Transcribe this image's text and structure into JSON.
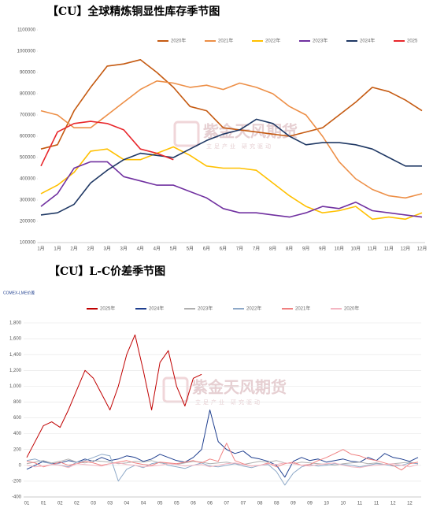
{
  "watermark": "紫金天风期货",
  "watermark_sub": "立足产业 研究驱动",
  "chart_data": [
    {
      "type": "line",
      "title": "【CU】全球精炼铜显性库存季节图",
      "categories": [
        "1月",
        "1月",
        "2月",
        "2月",
        "3月",
        "3月",
        "4月",
        "4月",
        "5月",
        "5月",
        "6月",
        "6月",
        "7月",
        "7月",
        "8月",
        "8月",
        "9月",
        "9月",
        "10月",
        "10月",
        "11月",
        "11月",
        "12月",
        "12月"
      ],
      "series": [
        {
          "name": "2020年",
          "color": "#c55a11",
          "values": [
            540000,
            560000,
            720000,
            830000,
            930000,
            940000,
            960000,
            900000,
            830000,
            740000,
            720000,
            640000,
            630000,
            620000,
            610000,
            600000,
            620000,
            640000,
            700000,
            760000,
            830000,
            810000,
            770000,
            720000
          ]
        },
        {
          "name": "2021年",
          "color": "#ed8f47",
          "values": [
            720000,
            700000,
            640000,
            640000,
            700000,
            760000,
            820000,
            860000,
            850000,
            830000,
            840000,
            820000,
            850000,
            830000,
            800000,
            740000,
            700000,
            600000,
            480000,
            400000,
            350000,
            320000,
            310000,
            330000
          ]
        },
        {
          "name": "2022年",
          "color": "#ffc000",
          "values": [
            330000,
            370000,
            430000,
            530000,
            540000,
            490000,
            490000,
            520000,
            550000,
            510000,
            460000,
            450000,
            450000,
            440000,
            380000,
            320000,
            270000,
            240000,
            250000,
            270000,
            210000,
            220000,
            210000,
            240000
          ]
        },
        {
          "name": "2023年",
          "color": "#7030a0",
          "values": [
            270000,
            330000,
            450000,
            480000,
            480000,
            410000,
            390000,
            370000,
            370000,
            340000,
            310000,
            260000,
            240000,
            240000,
            230000,
            220000,
            240000,
            270000,
            260000,
            290000,
            250000,
            240000,
            230000,
            220000
          ]
        },
        {
          "name": "2024年",
          "color": "#1f3864",
          "values": [
            230000,
            240000,
            280000,
            380000,
            440000,
            490000,
            520000,
            510000,
            500000,
            540000,
            580000,
            610000,
            630000,
            680000,
            660000,
            600000,
            560000,
            570000,
            570000,
            560000,
            540000,
            500000,
            460000,
            460000
          ]
        },
        {
          "name": "2025",
          "color": "#e8262b",
          "values": [
            460000,
            620000,
            660000,
            670000,
            660000,
            630000,
            540000,
            520000,
            490000,
            null,
            null,
            null,
            null,
            null,
            null,
            null,
            null,
            null,
            null,
            null,
            null,
            null,
            null,
            null
          ]
        }
      ],
      "ylim": [
        100000,
        1100000
      ],
      "yticks": [
        100000,
        200000,
        300000,
        400000,
        500000,
        600000,
        700000,
        800000,
        900000,
        1000000,
        1100000
      ],
      "grid": false,
      "legend": "top"
    },
    {
      "type": "line",
      "title": "【CU】L-C价差季节图",
      "subtitle": "COMEX-LME价差",
      "categories": [
        "01",
        null,
        "01",
        null,
        "02",
        null,
        "02",
        null,
        "03",
        null,
        "03",
        null,
        "04",
        null,
        "04",
        null,
        "05",
        null,
        "05",
        null,
        "06",
        null,
        "06",
        null,
        "07",
        null,
        "07",
        null,
        "08",
        null,
        "08",
        null,
        "09",
        null,
        "09",
        null,
        "10",
        null,
        "10",
        null,
        "11",
        null,
        "11",
        null,
        "12",
        null,
        "12",
        null
      ],
      "series": [
        {
          "name": "2025年",
          "color": "#c00000",
          "values": [
            100,
            300,
            500,
            550,
            480,
            700,
            950,
            1200,
            1100,
            900,
            700,
            1000,
            1400,
            1650,
            1200,
            700,
            1300,
            1450,
            1000,
            750,
            1100,
            1150,
            null,
            null,
            null,
            null,
            null,
            null,
            null,
            null,
            null,
            null,
            null,
            null,
            null,
            null,
            null,
            null,
            null,
            null,
            null,
            null,
            null,
            null,
            null,
            null,
            null,
            null
          ]
        },
        {
          "name": "2024年",
          "color": "#1f3f8f",
          "values": [
            -50,
            0,
            50,
            20,
            30,
            60,
            40,
            80,
            50,
            100,
            60,
            80,
            120,
            100,
            50,
            80,
            140,
            100,
            60,
            40,
            100,
            200,
            700,
            300,
            200,
            150,
            180,
            100,
            80,
            50,
            0,
            -150,
            50,
            100,
            60,
            80,
            40,
            60,
            80,
            50,
            40,
            100,
            60,
            150,
            100,
            80,
            50,
            100
          ]
        },
        {
          "name": "2023年",
          "color": "#b0b0b0",
          "values": [
            20,
            40,
            60,
            30,
            50,
            80,
            40,
            30,
            60,
            50,
            40,
            20,
            30,
            50,
            40,
            60,
            30,
            20,
            10,
            30,
            50,
            40,
            20,
            30,
            40,
            20,
            10,
            30,
            50,
            40,
            60,
            30,
            20,
            40,
            30,
            20,
            10,
            0,
            20,
            30,
            40,
            20,
            30,
            10,
            20,
            30,
            40,
            20
          ]
        },
        {
          "name": "2022年",
          "color": "#8ea9c8",
          "values": [
            60,
            80,
            40,
            20,
            0,
            -20,
            40,
            60,
            100,
            140,
            120,
            -200,
            -50,
            0,
            -30,
            20,
            40,
            0,
            -20,
            -40,
            0,
            30,
            -10,
            -20,
            0,
            20,
            -10,
            -30,
            0,
            10,
            -80,
            -250,
            -100,
            -20,
            10,
            -10,
            0,
            20,
            10,
            0,
            -20,
            0,
            20,
            10,
            -10,
            0,
            30,
            20
          ]
        },
        {
          "name": "2021年",
          "color": "#f08080",
          "values": [
            50,
            30,
            -20,
            10,
            40,
            0,
            20,
            50,
            30,
            0,
            20,
            40,
            60,
            30,
            10,
            0,
            40,
            30,
            20,
            40,
            60,
            30,
            80,
            50,
            280,
            60,
            20,
            -10,
            0,
            30,
            -20,
            20,
            40,
            0,
            10,
            60,
            100,
            150,
            200,
            140,
            120,
            80,
            60,
            30,
            0,
            -60,
            20,
            40
          ]
        },
        {
          "name": "2020年",
          "color": "#f4b6c2",
          "values": [
            0,
            -20,
            -10,
            10,
            0,
            -30,
            20,
            10,
            0,
            -10,
            20,
            30,
            10,
            0,
            -20,
            -10,
            0,
            20,
            10,
            -10,
            0,
            10,
            -20,
            0,
            20,
            30,
            10,
            -10,
            0,
            20,
            10,
            30,
            20,
            0,
            -10,
            10,
            20,
            30,
            0,
            -20,
            -30,
            -10,
            0,
            10,
            20,
            0,
            -20,
            10
          ]
        }
      ],
      "ylim": [
        -400,
        1800
      ],
      "yticks": [
        -400,
        -200,
        0,
        200,
        400,
        600,
        800,
        {
          "value": 1000,
          "label": "1,000"
        },
        {
          "value": 1200,
          "label": "1,200"
        },
        {
          "value": 1400,
          "label": "1,400"
        },
        {
          "value": 1600,
          "label": "1,600"
        },
        {
          "value": 1800,
          "label": "1,800"
        }
      ],
      "grid": true,
      "legend": "top"
    }
  ]
}
